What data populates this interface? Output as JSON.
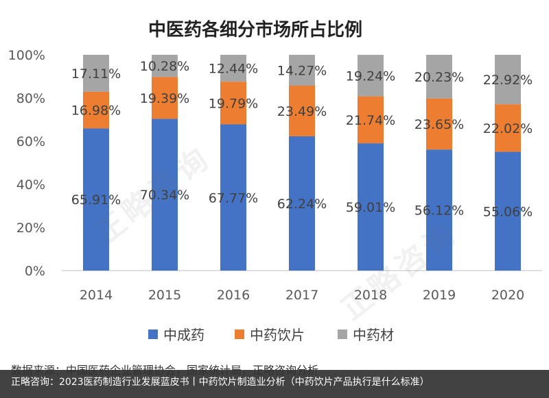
{
  "watermark": "正略咨询",
  "chart_data": {
    "type": "bar",
    "stacked": true,
    "title": "中医药各细分市场所占比例",
    "categories": [
      "2014",
      "2015",
      "2016",
      "2017",
      "2018",
      "2019",
      "2020"
    ],
    "ylim": [
      0,
      100
    ],
    "yticks": [
      "0%",
      "20%",
      "40%",
      "60%",
      "80%",
      "100%"
    ],
    "legend_position": "bottom",
    "grid": false,
    "series": [
      {
        "name": "中成药",
        "color": "#4472C4",
        "values": [
          65.91,
          70.34,
          67.77,
          62.24,
          59.01,
          56.12,
          55.06
        ],
        "labels": [
          "65.91%",
          "70.34%",
          "67.77%",
          "62.24%",
          "59.01%",
          "56.12%",
          "55.06%"
        ]
      },
      {
        "name": "中药饮片",
        "color": "#ED7D31",
        "values": [
          16.98,
          19.39,
          19.79,
          23.49,
          21.74,
          23.65,
          22.02
        ],
        "labels": [
          "16.98%",
          "19.39%",
          "19.79%",
          "23.49%",
          "21.74%",
          "23.65%",
          "22.02%"
        ]
      },
      {
        "name": "中药材",
        "color": "#A5A5A5",
        "values": [
          17.11,
          10.28,
          12.44,
          14.27,
          19.24,
          20.23,
          22.92
        ],
        "labels": [
          "17.11%",
          "10.28%",
          "12.44%",
          "14.27%",
          "19.24%",
          "20.23%",
          "22.92%"
        ]
      }
    ]
  },
  "source_note": "数据来源：中国医药企业管理协会，国家统计局，正略咨询分析",
  "footer_caption": "正略咨询：2023医药制造行业发展蓝皮书丨中药饮片制造业分析（中药饮片产品执行是什么标准）"
}
